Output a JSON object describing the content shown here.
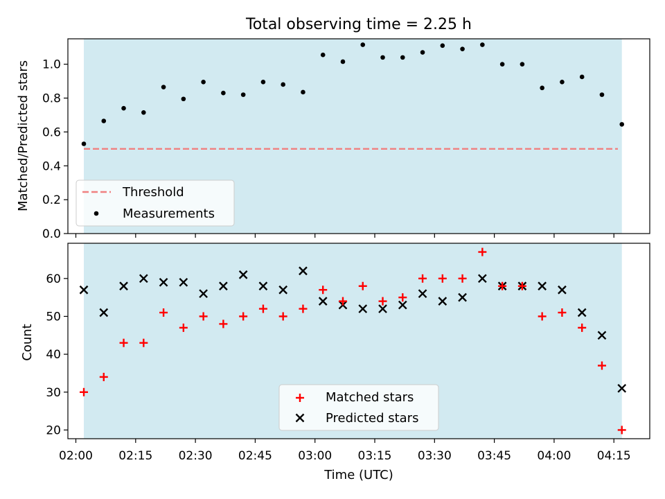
{
  "figure_title": "Total observing time = 2.25 h",
  "colors": {
    "span_fill": "#add8e6",
    "threshold": "#f08080",
    "measurement": "#000000",
    "matched": "#ff0000",
    "predicted": "#000000"
  },
  "chart_data": [
    {
      "type": "scatter",
      "panel": "top",
      "title": "Total observing time = 2.25 h",
      "xlabel": "",
      "ylabel": "Matched/Predicted stars",
      "xlim": [
        "01:58",
        "04:24"
      ],
      "ylim": [
        0,
        1.15
      ],
      "yticks": [
        "0.0",
        "0.2",
        "0.4",
        "0.6",
        "0.8",
        "1.0"
      ],
      "grid": false,
      "legend_position": "lower-left",
      "shaded_span": [
        "02:02",
        "04:17"
      ],
      "series": [
        {
          "name": "Threshold",
          "kind": "dashed-line",
          "x": [
            "02:02",
            "04:16"
          ],
          "y": [
            0.5,
            0.5
          ]
        },
        {
          "name": "Measurements",
          "kind": "dot",
          "x": [
            "02:02",
            "02:07",
            "02:12",
            "02:17",
            "02:22",
            "02:27",
            "02:32",
            "02:37",
            "02:42",
            "02:47",
            "02:52",
            "02:57",
            "03:02",
            "03:07",
            "03:12",
            "03:17",
            "03:22",
            "03:27",
            "03:32",
            "03:37",
            "03:42",
            "03:47",
            "03:52",
            "03:57",
            "04:02",
            "04:07",
            "04:12",
            "04:17"
          ],
          "y": [
            0.53,
            0.665,
            0.74,
            0.715,
            0.865,
            0.795,
            0.895,
            0.83,
            0.82,
            0.895,
            0.88,
            0.835,
            1.055,
            1.015,
            1.115,
            1.04,
            1.04,
            1.07,
            1.11,
            1.09,
            1.115,
            1.0,
            1.0,
            0.86,
            0.895,
            0.925,
            0.82,
            0.645
          ]
        }
      ]
    },
    {
      "type": "scatter",
      "panel": "bottom",
      "title": "",
      "xlabel": "Time (UTC)",
      "ylabel": "Count",
      "xlim": [
        "01:58",
        "04:24"
      ],
      "ylim": [
        17.7,
        69.3
      ],
      "xticks": [
        "02:00",
        "02:15",
        "02:30",
        "02:45",
        "03:00",
        "03:15",
        "03:30",
        "03:45",
        "04:00",
        "04:15"
      ],
      "yticks": [
        "20",
        "30",
        "40",
        "50",
        "60"
      ],
      "grid": false,
      "legend_position": "lower-center",
      "shaded_span": [
        "02:02",
        "04:17"
      ],
      "x": [
        "02:02",
        "02:07",
        "02:12",
        "02:17",
        "02:22",
        "02:27",
        "02:32",
        "02:37",
        "02:42",
        "02:47",
        "02:52",
        "02:57",
        "03:02",
        "03:07",
        "03:12",
        "03:17",
        "03:22",
        "03:27",
        "03:32",
        "03:37",
        "03:42",
        "03:47",
        "03:52",
        "03:57",
        "04:02",
        "04:07",
        "04:12",
        "04:17"
      ],
      "series": [
        {
          "name": "Matched stars",
          "marker": "plus",
          "values": [
            30,
            34,
            43,
            43,
            51,
            47,
            50,
            48,
            50,
            52,
            50,
            52,
            57,
            54,
            58,
            54,
            55,
            60,
            60,
            60,
            67,
            58,
            58,
            50,
            51,
            47,
            37,
            20
          ]
        },
        {
          "name": "Predicted stars",
          "marker": "x",
          "values": [
            57,
            51,
            58,
            60,
            59,
            59,
            56,
            58,
            61,
            58,
            57,
            62,
            54,
            53,
            52,
            52,
            53,
            56,
            54,
            55,
            60,
            58,
            58,
            58,
            57,
            51,
            45,
            31
          ]
        }
      ]
    }
  ]
}
